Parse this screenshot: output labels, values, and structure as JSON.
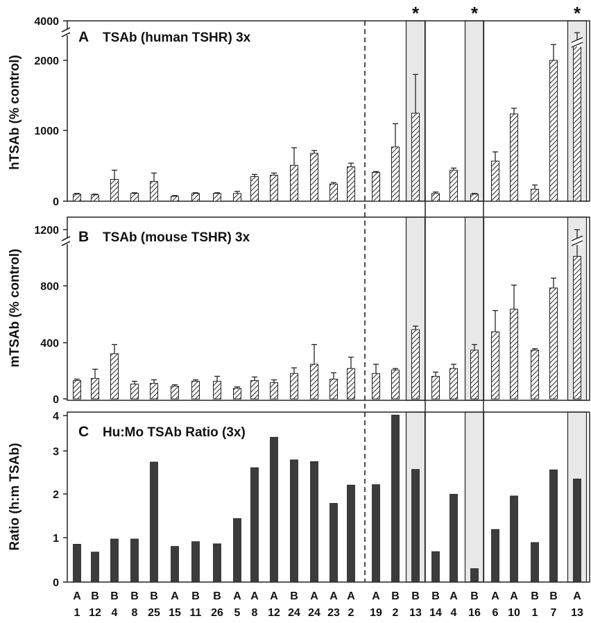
{
  "x_categories": [
    {
      "group": "A",
      "id": "1"
    },
    {
      "group": "B",
      "id": "12"
    },
    {
      "group": "B",
      "id": "4"
    },
    {
      "group": "B",
      "id": "8"
    },
    {
      "group": "B",
      "id": "25"
    },
    {
      "group": "A",
      "id": "15"
    },
    {
      "group": "B",
      "id": "11"
    },
    {
      "group": "B",
      "id": "26"
    },
    {
      "group": "A",
      "id": "5"
    },
    {
      "group": "A",
      "id": "8"
    },
    {
      "group": "A",
      "id": "12"
    },
    {
      "group": "B",
      "id": "24"
    },
    {
      "group": "A",
      "id": "24"
    },
    {
      "group": "A",
      "id": "23"
    },
    {
      "group": "A",
      "id": "2"
    },
    {
      "group": "A",
      "id": "19"
    },
    {
      "group": "B",
      "id": "2"
    },
    {
      "group": "B",
      "id": "13"
    },
    {
      "group": "B",
      "id": "14"
    },
    {
      "group": "A",
      "id": "4"
    },
    {
      "group": "B",
      "id": "16"
    },
    {
      "group": "A",
      "id": "6"
    },
    {
      "group": "A",
      "id": "10"
    },
    {
      "group": "B",
      "id": "1"
    },
    {
      "group": "B",
      "id": "7"
    },
    {
      "group": "A",
      "id": "13"
    }
  ],
  "highlighted_indices": [
    17,
    20,
    25
  ],
  "significance_marker": "*",
  "colors": {
    "hatched_fill": "#d8d8d8",
    "solid_bar": "#3c3c3c",
    "highlight": "#e8e8e8"
  },
  "chart_data": [
    {
      "panel": "A",
      "type": "bar",
      "title": "TSAb (human TSHR) 3x",
      "ylabel": "hTSAb (% control)",
      "yticks": [
        "0",
        "1000",
        "2000",
        "4000"
      ],
      "axis_break": true,
      "values": [
        100,
        90,
        310,
        110,
        280,
        70,
        110,
        110,
        110,
        350,
        370,
        510,
        680,
        245,
        490,
        410,
        770,
        1250,
        110,
        440,
        100,
        570,
        1240,
        170,
        2000,
        3000
      ],
      "errors": [
        10,
        10,
        130,
        10,
        120,
        10,
        10,
        10,
        30,
        30,
        30,
        250,
        40,
        20,
        50,
        10,
        330,
        550,
        20,
        30,
        10,
        130,
        80,
        60,
        800,
        400
      ]
    },
    {
      "panel": "B",
      "type": "bar",
      "title": "TSAb (mouse TSHR) 3x",
      "ylabel": "mTSAb (% control)",
      "yticks": [
        "0",
        "400",
        "800",
        "1200"
      ],
      "axis_break": true,
      "values": [
        130,
        145,
        320,
        105,
        110,
        90,
        125,
        125,
        75,
        130,
        115,
        180,
        245,
        140,
        215,
        180,
        205,
        490,
        160,
        215,
        345,
        475,
        635,
        345,
        785,
        1010
      ],
      "errors": [
        10,
        65,
        65,
        20,
        25,
        10,
        10,
        35,
        10,
        25,
        20,
        40,
        140,
        45,
        80,
        65,
        10,
        25,
        30,
        30,
        40,
        150,
        170,
        10,
        70,
        190
      ]
    },
    {
      "panel": "C",
      "type": "bar",
      "title": "Hu:Mo TSAb Ratio (3x)",
      "ylabel": "Ratio (h:m TSAb)",
      "yticks": [
        "0",
        "1",
        "2",
        "3",
        "4"
      ],
      "ylim": [
        0,
        4
      ],
      "values": [
        0.87,
        0.69,
        0.99,
        0.99,
        2.76,
        0.82,
        0.93,
        0.88,
        1.46,
        2.63,
        3.33,
        2.81,
        2.77,
        1.81,
        2.23,
        2.24,
        3.84,
        2.59,
        0.7,
        2.02,
        0.31,
        1.21,
        1.98,
        0.91,
        2.58,
        2.37
      ]
    }
  ]
}
